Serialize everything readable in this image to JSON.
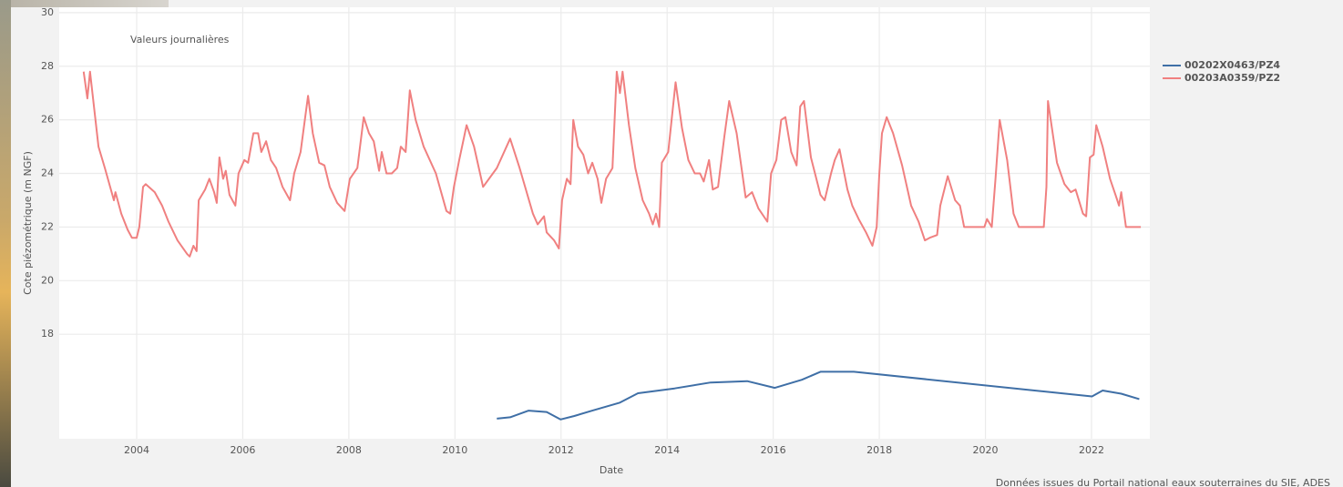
{
  "chart_data": {
    "type": "line",
    "annotation": "Valeurs journalières",
    "ylabel": "Cote piézométrique (m NGF)",
    "xlabel": "Date",
    "caption": "Données issues du Portail national eaux souterraines du SIE, ADES",
    "xlim": [
      2002.54,
      2023.1
    ],
    "xticks": [
      2004,
      2006,
      2008,
      2010,
      2012,
      2014,
      2016,
      2018,
      2020,
      2022
    ],
    "ylim": [
      14.1,
      30.2
    ],
    "yticks": [
      18,
      20,
      22,
      24,
      26,
      28,
      30
    ],
    "grid": true,
    "legend": "right",
    "series": [
      {
        "name": "00202X0463/PZ4",
        "color": "#3f6fa6",
        "x": [
          2010.79,
          2011.04,
          2011.39,
          2011.73,
          2011.99,
          2012.25,
          2012.59,
          2013.11,
          2013.45,
          2014.14,
          2014.82,
          2015.51,
          2016.03,
          2016.54,
          2016.89,
          2017.52,
          2022.01,
          2022.21,
          2022.56,
          2022.9
        ],
        "values": [
          14.85,
          14.9,
          15.15,
          15.1,
          14.82,
          14.95,
          15.15,
          15.45,
          15.8,
          15.98,
          16.2,
          16.25,
          16.0,
          16.3,
          16.6,
          16.6,
          15.68,
          15.9,
          15.78,
          15.58
        ]
      },
      {
        "name": "00203A0359/PZ2",
        "color": "#f08080",
        "x": [
          2003.0,
          2003.07,
          2003.12,
          2003.28,
          2003.4,
          2003.57,
          2003.6,
          2003.71,
          2003.83,
          2003.91,
          2004.0,
          2004.05,
          2004.12,
          2004.17,
          2004.34,
          2004.48,
          2004.6,
          2004.77,
          2004.95,
          2005.0,
          2005.07,
          2005.13,
          2005.17,
          2005.29,
          2005.37,
          2005.46,
          2005.51,
          2005.56,
          2005.63,
          2005.68,
          2005.75,
          2005.86,
          2005.92,
          2006.03,
          2006.1,
          2006.2,
          2006.29,
          2006.35,
          2006.44,
          2006.53,
          2006.63,
          2006.75,
          2006.89,
          2006.97,
          2007.09,
          2007.23,
          2007.32,
          2007.44,
          2007.54,
          2007.64,
          2007.78,
          2007.92,
          2008.02,
          2008.16,
          2008.28,
          2008.38,
          2008.47,
          2008.57,
          2008.62,
          2008.71,
          2008.81,
          2008.91,
          2008.98,
          2009.07,
          2009.15,
          2009.26,
          2009.41,
          2009.64,
          2009.84,
          2009.91,
          2009.98,
          2010.08,
          2010.22,
          2010.36,
          2010.53,
          2010.79,
          2011.04,
          2011.22,
          2011.47,
          2011.56,
          2011.68,
          2011.73,
          2011.87,
          2011.96,
          2012.02,
          2012.11,
          2012.18,
          2012.23,
          2012.32,
          2012.42,
          2012.51,
          2012.59,
          2012.69,
          2012.76,
          2012.85,
          2012.97,
          2013.05,
          2013.11,
          2013.16,
          2013.28,
          2013.4,
          2013.54,
          2013.66,
          2013.73,
          2013.79,
          2013.85,
          2013.9,
          2014.02,
          2014.16,
          2014.28,
          2014.4,
          2014.52,
          2014.62,
          2014.69,
          2014.79,
          2014.86,
          2014.96,
          2015.08,
          2015.17,
          2015.31,
          2015.48,
          2015.6,
          2015.72,
          2015.89,
          2015.96,
          2016.06,
          2016.15,
          2016.23,
          2016.34,
          2016.44,
          2016.51,
          2016.58,
          2016.71,
          2016.89,
          2016.97,
          2017.09,
          2017.16,
          2017.25,
          2017.4,
          2017.49,
          2017.61,
          2017.75,
          2017.87,
          2017.95,
          2018.0,
          2018.05,
          2018.14,
          2018.26,
          2018.43,
          2018.6,
          2018.74,
          2018.86,
          2018.95,
          2019.09,
          2019.15,
          2019.29,
          2019.43,
          2019.52,
          2019.6,
          2019.98,
          2020.03,
          2020.12,
          2020.19,
          2020.27,
          2020.41,
          2020.53,
          2020.63,
          2021.1,
          2021.15,
          2021.18,
          2021.35,
          2021.49,
          2021.61,
          2021.7,
          2021.84,
          2021.9,
          2021.97,
          2022.04,
          2022.09,
          2022.21,
          2022.35,
          2022.47,
          2022.52,
          2022.56,
          2022.65,
          2022.93
        ],
        "values": [
          27.8,
          26.8,
          27.8,
          25,
          24.2,
          23,
          23.3,
          22.5,
          21.9,
          21.6,
          21.6,
          22,
          23.5,
          23.6,
          23.3,
          22.8,
          22.2,
          21.5,
          21,
          20.9,
          21.3,
          21.1,
          23,
          23.4,
          23.8,
          23.3,
          22.9,
          24.6,
          23.8,
          24.1,
          23.2,
          22.8,
          24,
          24.5,
          24.4,
          25.5,
          25.5,
          24.8,
          25.2,
          24.5,
          24.2,
          23.5,
          23,
          24,
          24.8,
          26.9,
          25.5,
          24.4,
          24.3,
          23.5,
          22.9,
          22.6,
          23.8,
          24.2,
          26.1,
          25.5,
          25.2,
          24.1,
          24.8,
          24,
          24,
          24.2,
          25,
          24.8,
          27.1,
          26,
          25,
          24,
          22.6,
          22.5,
          23.5,
          24.5,
          25.8,
          25,
          23.5,
          24.2,
          25.3,
          24.2,
          22.5,
          22.1,
          22.4,
          21.8,
          21.5,
          21.2,
          23,
          23.8,
          23.6,
          26,
          25,
          24.7,
          24,
          24.4,
          23.8,
          22.9,
          23.8,
          24.2,
          27.8,
          27,
          27.8,
          25.8,
          24.2,
          23,
          22.5,
          22.1,
          22.5,
          22,
          24.4,
          24.8,
          27.4,
          25.7,
          24.5,
          24,
          24,
          23.7,
          24.5,
          23.4,
          23.5,
          25.4,
          26.7,
          25.5,
          23.1,
          23.3,
          22.7,
          22.2,
          24,
          24.5,
          26,
          26.1,
          24.8,
          24.3,
          26.5,
          26.7,
          24.6,
          23.2,
          23,
          24,
          24.5,
          24.9,
          23.4,
          22.8,
          22.3,
          21.8,
          21.3,
          22,
          24,
          25.5,
          26.1,
          25.5,
          24.3,
          22.8,
          22.2,
          21.5,
          21.6,
          21.7,
          22.8,
          23.9,
          23,
          22.8,
          22,
          22,
          22.3,
          22,
          23.8,
          26,
          24.5,
          22.5,
          22,
          22,
          23.5,
          26.7,
          24.4,
          23.6,
          23.3,
          23.4,
          22.5,
          22.4,
          24.6,
          24.7,
          25.8,
          25,
          23.8,
          23.1,
          22.8,
          23.3,
          22,
          22
        ]
      }
    ]
  }
}
